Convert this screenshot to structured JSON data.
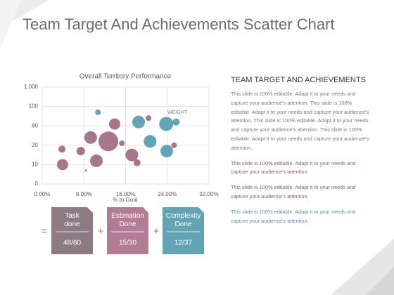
{
  "header": {
    "title": "Team Target And Achievements Scatter Chart"
  },
  "chart_data": {
    "type": "bubble",
    "title": "Overall Territory Performance",
    "x_label": "% to Goal",
    "annotation": "WEIGHT",
    "xlim": [
      0,
      32
    ],
    "xticks": [
      {
        "value": 0,
        "label": "0.00%"
      },
      {
        "value": 8,
        "label": "8.00%"
      },
      {
        "value": 16,
        "label": "16.00%"
      },
      {
        "value": 24,
        "label": "24.00%"
      },
      {
        "value": 32,
        "label": "32.00%"
      }
    ],
    "ylim": [
      0,
      5
    ],
    "ycategories": [
      "0",
      "10",
      "20",
      "80",
      "100",
      "1,000"
    ],
    "grid": true,
    "series": [
      {
        "color": "#a5768e",
        "x": [
          3.9,
          3.8,
          7.4,
          8.4,
          9.3,
          10.4,
          12.7,
          13.9,
          15.3,
          17.2,
          18.2,
          20.4,
          25.3
        ],
        "values": [
          1.0,
          1.8,
          1.7,
          0.7,
          2.4,
          1.2,
          2.2,
          3.1,
          2.1,
          1.5,
          1.1,
          3.4,
          2.0
        ],
        "sizes": [
          8,
          5,
          6,
          1.5,
          9,
          9,
          14,
          8,
          4,
          9,
          5,
          4,
          4
        ]
      },
      {
        "color": "#63a3b3",
        "x": [
          10.7,
          18.5,
          20.7,
          23.8,
          25.7,
          23.9
        ],
        "values": [
          3.7,
          3.2,
          2.2,
          3.1,
          3.2,
          1.7
        ],
        "sizes": [
          4,
          9,
          9,
          10,
          5,
          9
        ]
      }
    ]
  },
  "panel": {
    "heading": "TEAM TARGET AND ACHIEVEMENTS",
    "paragraphs": [
      "This slide is 100% editable. Adapt it to your needs and capture your audience's attention. This slide is 100% editable. Adapt it to your needs and capture your audience's attention. This slide is 100% editable. Adapt it to your needs and capture your audience's attention. This slide is 100% editable. Adapt it to your needs and capture your audience's attention.",
      "This slide is 100% editable. Adapt it to your needs and capture your audience's attention.",
      "This slide is 100% editable. Adapt it to your needs and capture your audience's attention.",
      "This slide is 100% editable. Adapt it to your needs and capture your audience's attention."
    ]
  },
  "operators": [
    "=",
    "+",
    "+"
  ],
  "kpis": [
    {
      "label": "Task done",
      "value": "48/80",
      "color": "#8e7a82"
    },
    {
      "label": "Estimation Done",
      "value": "15/30",
      "color": "#b27c94"
    },
    {
      "label": "Complexity Done",
      "value": "12/37",
      "color": "#63a3b3"
    }
  ]
}
